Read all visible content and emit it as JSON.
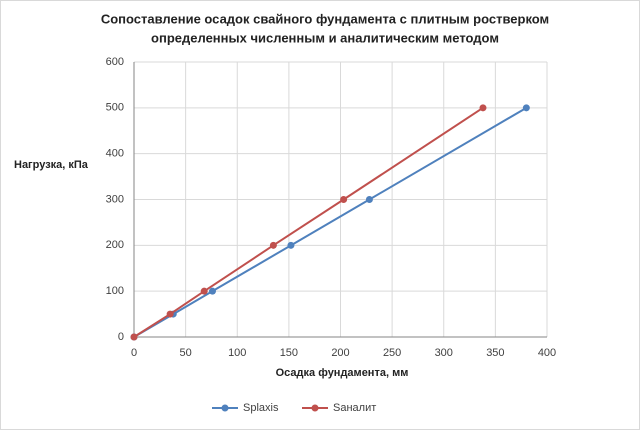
{
  "chart_data": {
    "type": "line",
    "title": [
      "Сопоставление осадок свайного фундамента с плитным ростверком",
      "определенных численным и аналитическим методом"
    ],
    "x_label": "Осадка фундамента, мм",
    "y_label": "Нагрузка, кПа",
    "xlim": [
      0,
      400
    ],
    "xticks": [
      0,
      50,
      100,
      150,
      200,
      250,
      300,
      350,
      400
    ],
    "ylim": [
      0,
      600
    ],
    "yticks": [
      0,
      100,
      200,
      300,
      400,
      500,
      600
    ],
    "grid": true,
    "legend": "bottom",
    "series": [
      {
        "name": "Splaxis",
        "color": "#4f81bd",
        "x": [
          0,
          38,
          76,
          152,
          228,
          380
        ],
        "values": [
          0,
          50,
          100,
          200,
          300,
          500
        ]
      },
      {
        "name": "Sаналит",
        "color": "#c0504d",
        "x": [
          0,
          35,
          68,
          135,
          203,
          338
        ],
        "values": [
          0,
          50,
          100,
          200,
          300,
          500
        ]
      }
    ]
  }
}
